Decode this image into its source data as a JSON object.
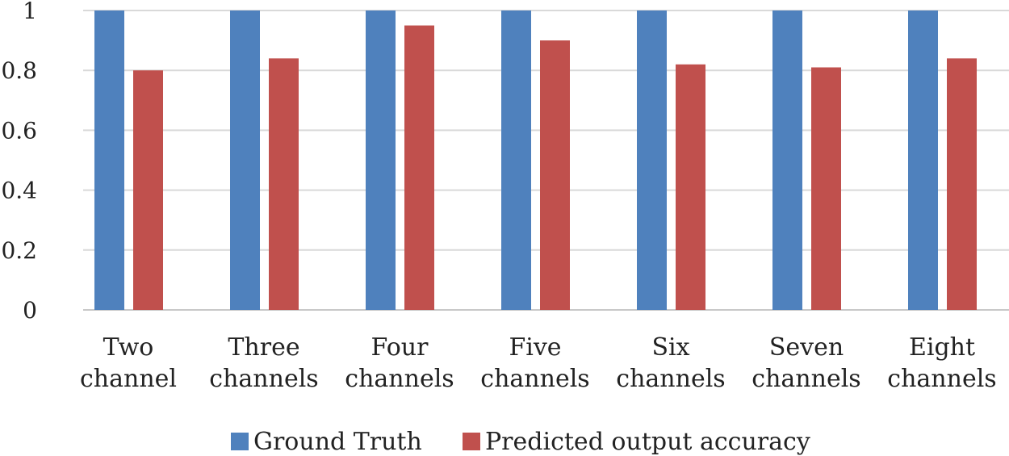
{
  "chart_data": {
    "type": "bar",
    "categories": [
      [
        "Two",
        "channel"
      ],
      [
        "Three",
        "channels"
      ],
      [
        "Four",
        "channels"
      ],
      [
        "Five",
        "channels"
      ],
      [
        "Six",
        "channels"
      ],
      [
        "Seven",
        "channels"
      ],
      [
        "Eight",
        "channels"
      ]
    ],
    "series": [
      {
        "name": "Ground Truth",
        "values": [
          1,
          1,
          1,
          1,
          1,
          1,
          1
        ],
        "color": "#4F81BD"
      },
      {
        "name": "Predicted output accuracy",
        "values": [
          0.8,
          0.84,
          0.95,
          0.9,
          0.82,
          0.81,
          0.84
        ],
        "color": "#C0504D"
      }
    ],
    "yticks": [
      "0",
      "0.2",
      "0.4",
      "0.6",
      "0.8",
      "1"
    ],
    "ylim": [
      0,
      1
    ],
    "grid": true,
    "legend_position": "bottom",
    "title": "",
    "xlabel": "",
    "ylabel": ""
  }
}
